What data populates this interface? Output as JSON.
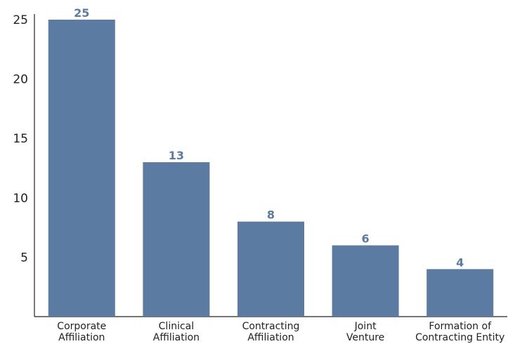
{
  "chart_data": {
    "type": "bar",
    "categories": [
      [
        "Corporate",
        "Affiliation"
      ],
      [
        "Clinical",
        "Affiliation"
      ],
      [
        "Contracting",
        "Affiliation"
      ],
      [
        "Joint",
        "Venture"
      ],
      [
        "Formation of",
        "Contracting Entity"
      ]
    ],
    "values": [
      25,
      13,
      8,
      6,
      4
    ],
    "data_labels": [
      "25",
      "13",
      "8",
      "6",
      "4"
    ],
    "yticks": [
      5,
      10,
      15,
      20,
      25
    ],
    "ylim": [
      0,
      25
    ],
    "grid": false,
    "legend": "none",
    "bar_color": "#5b7ba3",
    "label_color": "#5b7ba3"
  }
}
